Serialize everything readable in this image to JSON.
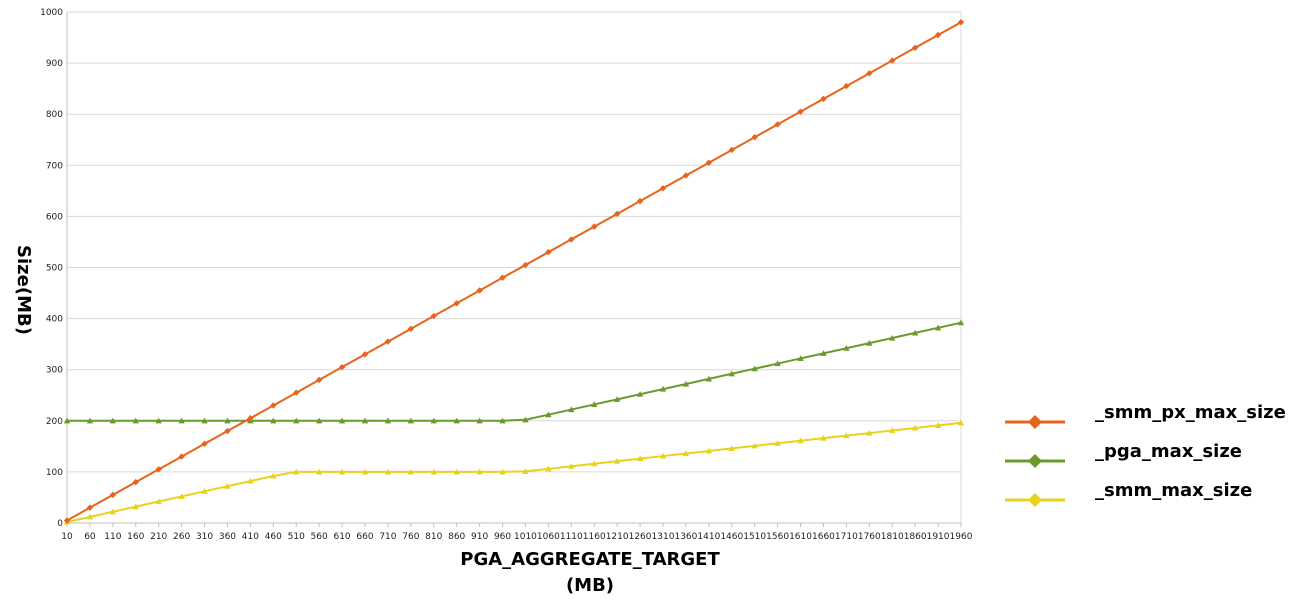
{
  "chart_data": {
    "type": "line",
    "xlabel_line1": "PGA_AGGREGATE_TARGET",
    "xlabel_line2": "(MB)",
    "ylabel": "Size(MB)",
    "ylim": [
      0,
      1000
    ],
    "y_ticks": [
      0,
      100,
      200,
      300,
      400,
      500,
      600,
      700,
      800,
      900,
      1000
    ],
    "x": [
      10,
      60,
      110,
      160,
      210,
      260,
      310,
      360,
      410,
      460,
      510,
      560,
      610,
      660,
      710,
      760,
      810,
      860,
      910,
      960,
      1010,
      1060,
      1110,
      1160,
      1210,
      1260,
      1310,
      1360,
      1410,
      1460,
      1510,
      1560,
      1610,
      1660,
      1710,
      1760,
      1810,
      1860,
      1910,
      1960
    ],
    "grid": true,
    "legend_position": "right",
    "series": [
      {
        "name": "_smm_px_max_size",
        "color": "#e8641c",
        "marker": "diamond",
        "values": [
          5,
          30,
          55,
          80,
          105,
          130,
          155,
          180,
          205,
          230,
          255,
          280,
          305,
          330,
          355,
          380,
          405,
          430,
          455,
          480,
          505,
          530,
          555,
          580,
          605,
          630,
          655,
          680,
          705,
          730,
          755,
          780,
          805,
          830,
          855,
          880,
          905,
          930,
          955,
          980
        ]
      },
      {
        "name": "_pga_max_size",
        "color": "#6a9a2c",
        "marker": "triangle",
        "values": [
          200,
          200,
          200,
          200,
          200,
          200,
          200,
          200,
          200,
          200,
          200,
          200,
          200,
          200,
          200,
          200,
          200,
          200,
          200,
          200,
          202,
          212,
          222,
          232,
          242,
          252,
          262,
          272,
          282,
          292,
          302,
          312,
          322,
          332,
          342,
          352,
          362,
          372,
          382,
          392
        ]
      },
      {
        "name": "_smm_max_size",
        "color": "#e8d21c",
        "marker": "triangle",
        "values": [
          2,
          12,
          22,
          32,
          42,
          52,
          62,
          72,
          82,
          92,
          100,
          100,
          100,
          100,
          100,
          100,
          100,
          100,
          100,
          100,
          101,
          106,
          111,
          116,
          121,
          126,
          131,
          136,
          141,
          146,
          151,
          156,
          161,
          166,
          171,
          176,
          181,
          186,
          191,
          196
        ]
      }
    ]
  }
}
